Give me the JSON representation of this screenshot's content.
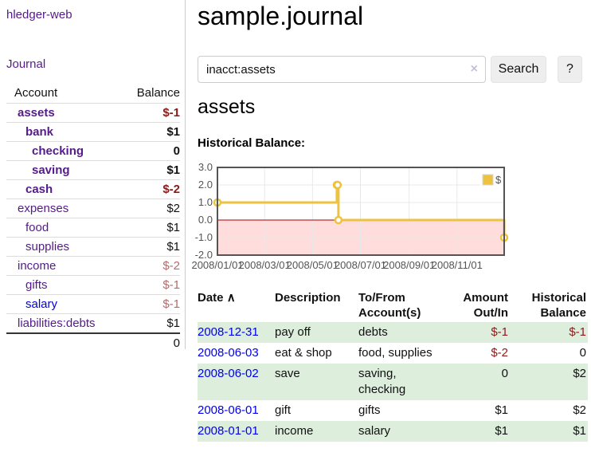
{
  "colors": {
    "brand_link_purple": "#551a8b",
    "link_blue": "#0000ee",
    "negative_red": "#8b1a1a",
    "negative_muted_red": "#b36b6b",
    "row_stripe_green": "#ddeedd",
    "chart_line_gold": "#edc240",
    "chart_negative_fill": "#ffdddd",
    "chart_zero_line": "#aa0000",
    "chart_border": "#545454"
  },
  "sidebar": {
    "brand": "hledger-web",
    "journal_link": "Journal",
    "accounts_table": {
      "headers": {
        "account": "Account",
        "balance": "Balance"
      },
      "rows": [
        {
          "account": "assets",
          "balance": "$-1",
          "depth": 1,
          "bold": true,
          "negative": true,
          "link_state": "visited"
        },
        {
          "account": "bank",
          "balance": "$1",
          "depth": 2,
          "bold": true,
          "negative": false,
          "link_state": "visited"
        },
        {
          "account": "checking",
          "balance": "0",
          "depth": 3,
          "bold": true,
          "negative": false,
          "link_state": "visited"
        },
        {
          "account": "saving",
          "balance": "$1",
          "depth": 3,
          "bold": true,
          "negative": false,
          "link_state": "visited"
        },
        {
          "account": "cash",
          "balance": "$-2",
          "depth": 2,
          "bold": true,
          "negative": true,
          "link_state": "visited"
        },
        {
          "account": "expenses",
          "balance": "$2",
          "depth": 1,
          "bold": false,
          "negative": false,
          "link_state": "visited"
        },
        {
          "account": "food",
          "balance": "$1",
          "depth": 2,
          "bold": false,
          "negative": false,
          "link_state": "visited"
        },
        {
          "account": "supplies",
          "balance": "$1",
          "depth": 2,
          "bold": false,
          "negative": false,
          "link_state": "visited"
        },
        {
          "account": "income",
          "balance": "$-2",
          "depth": 1,
          "bold": false,
          "negative": true,
          "link_state": "visited"
        },
        {
          "account": "gifts",
          "balance": "$-1",
          "depth": 2,
          "bold": false,
          "negative": true,
          "link_state": "visited"
        },
        {
          "account": "salary",
          "balance": "$-1",
          "depth": 2,
          "bold": false,
          "negative": true,
          "link_state": "unvisited"
        },
        {
          "account": "liabilities:debts",
          "balance": "$1",
          "depth": 1,
          "bold": false,
          "negative": false,
          "link_state": "visited"
        }
      ],
      "total": "0"
    }
  },
  "header": {
    "title": "sample.journal"
  },
  "search": {
    "value": "inacct:assets",
    "clear_icon": "×",
    "button_label": "Search",
    "help_label": "?"
  },
  "account_page": {
    "heading": "assets",
    "chart_label": "Historical Balance:"
  },
  "chart_data": {
    "type": "line",
    "step": true,
    "title": "Historical Balance:",
    "series": [
      {
        "name": "$",
        "color": "#edc240",
        "points": [
          [
            "2008-01-01",
            1
          ],
          [
            "2008-06-01",
            2
          ],
          [
            "2008-06-02",
            2
          ],
          [
            "2008-06-03",
            0
          ],
          [
            "2008-12-31",
            -1
          ]
        ]
      }
    ],
    "xlim": [
      "2008-01-01",
      "2008-12-31"
    ],
    "ylim": [
      -2,
      3
    ],
    "x_ticks": [
      "2008/01/01",
      "2008/03/01",
      "2008/05/01",
      "2008/07/01",
      "2008/09/01",
      "2008/11/01"
    ],
    "y_ticks": [
      "3.0",
      "2.0",
      "1.0",
      "0.0",
      "-1.0",
      "-2.0"
    ],
    "grid": true,
    "legend": {
      "label": "$",
      "position": "top-right"
    },
    "negative_region_color": "#ffdddd",
    "zero_line_color": "#aa0000",
    "border_color": "#545454",
    "axis_text_color": "#545454"
  },
  "register_table": {
    "headers": {
      "date": "Date",
      "sort_icon": "∧",
      "description": "Description",
      "tofrom": [
        "To/From",
        "Account(s)"
      ],
      "amount": [
        "Amount",
        "Out/In"
      ],
      "balance": [
        "Historical",
        "Balance"
      ]
    },
    "rows": [
      {
        "date": "2008-12-31",
        "description": "pay off",
        "accounts": [
          "debts"
        ],
        "amount": "$-1",
        "amount_negative": true,
        "balance": "$-1",
        "balance_negative": true
      },
      {
        "date": "2008-06-03",
        "description": "eat & shop",
        "accounts": [
          "food, supplies"
        ],
        "amount": "$-2",
        "amount_negative": true,
        "balance": "0",
        "balance_negative": false
      },
      {
        "date": "2008-06-02",
        "description": "save",
        "accounts": [
          "saving,",
          "checking"
        ],
        "amount": "0",
        "amount_negative": false,
        "balance": "$2",
        "balance_negative": false
      },
      {
        "date": "2008-06-01",
        "description": "gift",
        "accounts": [
          "gifts"
        ],
        "amount": "$1",
        "amount_negative": false,
        "balance": "$2",
        "balance_negative": false
      },
      {
        "date": "2008-01-01",
        "description": "income",
        "accounts": [
          "salary"
        ],
        "amount": "$1",
        "amount_negative": false,
        "balance": "$1",
        "balance_negative": false
      }
    ]
  }
}
